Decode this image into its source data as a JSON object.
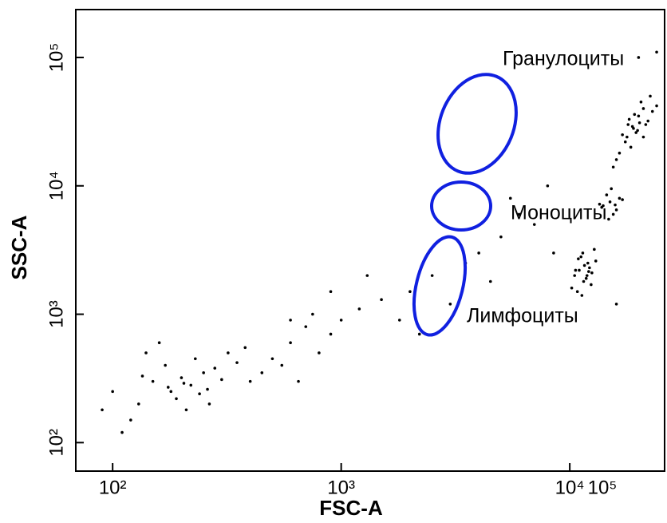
{
  "chart_data": {
    "type": "scatter",
    "xlabel": "FSC-A",
    "ylabel": "SSC-A",
    "xscale": "log",
    "yscale": "log",
    "color": "#000000",
    "xlim": [
      69,
      26000
    ],
    "ylim": [
      60,
      236000
    ],
    "xticks": [
      {
        "value": 100,
        "label": "10²"
      },
      {
        "value": 1000,
        "label": "10³"
      },
      {
        "value": 10000,
        "label": "10⁴"
      },
      {
        "value": 100000,
        "label": "10⁵"
      }
    ],
    "yticks": [
      {
        "value": 100,
        "label": "10²"
      },
      {
        "value": 1000,
        "label": "10³"
      },
      {
        "value": 10000,
        "label": "10⁴"
      },
      {
        "value": 100000,
        "label": "10⁵"
      }
    ],
    "annotations": [
      "Гранулоциты",
      "Моноциты",
      "Лимфоциты"
    ],
    "x": [
      150,
      180,
      200,
      220,
      250,
      130,
      170,
      210,
      260,
      300,
      120,
      140,
      190,
      230,
      280,
      350,
      400,
      110,
      160,
      240,
      320,
      450,
      500,
      100,
      90,
      135,
      175,
      205,
      265,
      380,
      600,
      700,
      800,
      550,
      900,
      1000,
      1200,
      650,
      750,
      1500,
      2000,
      2500,
      3000,
      4000,
      5000,
      6000,
      1800,
      3500,
      7000,
      8000,
      2200,
      4500,
      1300,
      900,
      600,
      20000,
      24000,
      5500,
      8500,
      16000,
      10500,
      11000,
      11500,
      12000,
      12500,
      10800,
      11200,
      11800,
      12200,
      13000,
      10200,
      11400,
      11600,
      12400,
      10600,
      11900,
      12800,
      11300,
      10900,
      12100,
      14000,
      15000,
      16000,
      14500,
      15500,
      13500,
      16500,
      15200,
      14800,
      17000,
      13800,
      15800,
      17000,
      18000,
      19000,
      20000,
      21000,
      22000,
      18500,
      19500,
      17500,
      20500,
      23000,
      16500,
      18200,
      19800,
      21500,
      17800,
      20200,
      24000,
      16000,
      19200,
      18800,
      22500,
      15500,
      21000
    ],
    "values": [
      300,
      250,
      320,
      280,
      350,
      200,
      400,
      180,
      260,
      310,
      150,
      500,
      220,
      450,
      380,
      420,
      300,
      120,
      600,
      240,
      500,
      350,
      450,
      250,
      180,
      330,
      270,
      290,
      200,
      550,
      600,
      800,
      500,
      400,
      700,
      900,
      1100,
      300,
      1000,
      1300,
      1500,
      2000,
      1200,
      3000,
      4000,
      6000,
      900,
      2500,
      5000,
      10000,
      700,
      1800,
      2000,
      1500,
      900,
      100000,
      110000,
      8000,
      3000,
      1200,
      2000,
      2200,
      1800,
      2500,
      2100,
      1500,
      2800,
      1900,
      2300,
      2600,
      1600,
      3000,
      2400,
      1700,
      2200,
      2000,
      3200,
      1400,
      2700,
      2150,
      7000,
      7500,
      6500,
      8500,
      6000,
      7200,
      8000,
      9500,
      5500,
      7800,
      6800,
      7100,
      25000,
      30000,
      28000,
      35000,
      40000,
      32000,
      20000,
      26000,
      22000,
      45000,
      38000,
      18000,
      33000,
      27000,
      30000,
      24000,
      31000,
      42000,
      16000,
      36000,
      29000,
      50000,
      14000,
      24000
    ]
  }
}
